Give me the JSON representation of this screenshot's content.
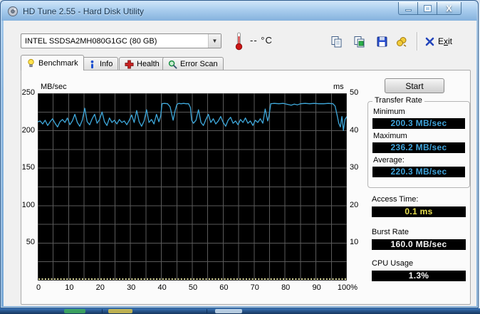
{
  "window": {
    "title": "HD Tune 2.55 - Hard Disk Utility"
  },
  "toolbar": {
    "drive_select": "INTEL SSDSA2MH080G1GC (80 GB)",
    "temperature_value": "--",
    "temperature_unit": "°C",
    "exit_label_parts": {
      "pre": "E",
      "accel": "x",
      "post": "it"
    }
  },
  "tabs": [
    {
      "label": "Benchmark",
      "icon": "lightbulb-icon",
      "active": true
    },
    {
      "label": "Info",
      "icon": "info-icon",
      "active": false
    },
    {
      "label": "Health",
      "icon": "health-cross-icon",
      "active": false
    },
    {
      "label": "Error Scan",
      "icon": "magnifier-icon",
      "active": false
    }
  ],
  "panel": {
    "start_button": "Start",
    "transfer_rate": {
      "legend": "Transfer Rate",
      "minimum_label": "Minimum",
      "minimum_value": "200.3 MB/sec",
      "maximum_label": "Maximum",
      "maximum_value": "236.2 MB/sec",
      "average_label": "Average:",
      "average_value": "220.3 MB/sec"
    },
    "access_time_label": "Access Time:",
    "access_time_value": "0.1 ms",
    "burst_rate_label": "Burst Rate",
    "burst_rate_value": "160.0 MB/sec",
    "cpu_usage_label": "CPU Usage",
    "cpu_usage_value": "1.3%"
  },
  "colors": {
    "accent_line": "#3fa9dc",
    "value_blue": "#3fa3da",
    "value_yellow": "#e8e050",
    "value_white": "#f5f5f5",
    "chart_background": "#000000"
  },
  "chart_data": {
    "type": "line",
    "title": "",
    "y_left_label": "MB/sec",
    "y_right_label": "ms",
    "x_ticks": [
      "0",
      "10",
      "20",
      "30",
      "40",
      "50",
      "60",
      "70",
      "80",
      "90",
      "100%"
    ],
    "y_left_ticks": [
      250,
      200,
      150,
      100,
      50
    ],
    "y_right_ticks": [
      50,
      40,
      30,
      20,
      10
    ],
    "xlim": [
      0,
      100
    ],
    "ylim_left": [
      0,
      250
    ],
    "ylim_right": [
      0,
      50
    ],
    "grid": {
      "x_step": 5,
      "y_step": 25,
      "color": "#5a5a5a",
      "on": true
    },
    "legend_position": "none",
    "line_color": "#3fa9dc",
    "access_dot_color": "#eae8a8",
    "access_time_ms": 0.1,
    "transfer_series": [
      [
        0,
        212
      ],
      [
        0.8,
        213
      ],
      [
        1.6,
        209
      ],
      [
        2.4,
        214
      ],
      [
        3.2,
        207
      ],
      [
        4,
        212
      ],
      [
        4.8,
        216
      ],
      [
        5.6,
        210
      ],
      [
        6.4,
        205
      ],
      [
        7.2,
        212
      ],
      [
        8,
        215
      ],
      [
        8.8,
        211
      ],
      [
        9.6,
        217
      ],
      [
        10.4,
        208
      ],
      [
        11.2,
        213
      ],
      [
        12,
        222
      ],
      [
        12.8,
        211
      ],
      [
        13.6,
        206
      ],
      [
        14.4,
        214
      ],
      [
        15.2,
        230
      ],
      [
        16,
        212
      ],
      [
        16.8,
        208
      ],
      [
        17.6,
        216
      ],
      [
        18.4,
        222
      ],
      [
        19.2,
        210
      ],
      [
        20,
        215
      ],
      [
        20.8,
        225
      ],
      [
        21.6,
        212
      ],
      [
        22.4,
        207
      ],
      [
        23.2,
        217
      ],
      [
        24,
        211
      ],
      [
        24.8,
        214
      ],
      [
        25.6,
        209
      ],
      [
        26.4,
        215
      ],
      [
        27.2,
        211
      ],
      [
        28,
        213
      ],
      [
        28.8,
        208
      ],
      [
        29.6,
        214
      ],
      [
        30.4,
        221
      ],
      [
        31.2,
        211
      ],
      [
        32,
        227
      ],
      [
        32.8,
        212
      ],
      [
        33.6,
        206
      ],
      [
        34.4,
        213
      ],
      [
        35.2,
        228
      ],
      [
        36,
        211
      ],
      [
        36.8,
        215
      ],
      [
        37.6,
        209
      ],
      [
        38.4,
        222
      ],
      [
        39.2,
        212
      ],
      [
        39.8,
        220
      ],
      [
        40.2,
        236
      ],
      [
        41,
        236.5
      ],
      [
        42,
        236
      ],
      [
        42.8,
        232
      ],
      [
        43.4,
        221
      ],
      [
        43.8,
        214
      ],
      [
        44.4,
        226
      ],
      [
        45,
        235
      ],
      [
        45.6,
        236.5
      ],
      [
        46.4,
        236
      ],
      [
        47.2,
        236.5
      ],
      [
        48,
        236
      ],
      [
        48.8,
        236
      ],
      [
        49.4,
        231
      ],
      [
        49.8,
        214
      ],
      [
        50.4,
        210
      ],
      [
        51.2,
        214
      ],
      [
        52,
        228
      ],
      [
        52.8,
        211
      ],
      [
        53.6,
        207
      ],
      [
        54.4,
        215
      ],
      [
        55.2,
        222
      ],
      [
        56,
        211
      ],
      [
        56.8,
        216
      ],
      [
        57.6,
        209
      ],
      [
        58.4,
        213
      ],
      [
        59.2,
        219
      ],
      [
        60,
        211
      ],
      [
        60.8,
        206
      ],
      [
        61.6,
        214
      ],
      [
        62.4,
        218
      ],
      [
        63.2,
        210
      ],
      [
        64,
        213
      ],
      [
        64.8,
        208
      ],
      [
        65.6,
        215
      ],
      [
        66.4,
        211
      ],
      [
        67.2,
        217
      ],
      [
        68,
        210
      ],
      [
        68.8,
        213
      ],
      [
        69.6,
        207
      ],
      [
        70.4,
        214
      ],
      [
        71.2,
        211
      ],
      [
        72,
        216
      ],
      [
        72.8,
        210
      ],
      [
        73.6,
        229
      ],
      [
        74.4,
        213
      ],
      [
        74.8,
        219
      ],
      [
        75.4,
        236
      ],
      [
        76.5,
        236.5
      ],
      [
        78,
        236
      ],
      [
        79.5,
        236.5
      ],
      [
        81,
        235
      ],
      [
        82,
        234
      ],
      [
        83,
        235.5
      ],
      [
        84,
        234.5
      ],
      [
        85,
        236
      ],
      [
        86.5,
        236.5
      ],
      [
        88,
        236
      ],
      [
        89.5,
        236.5
      ],
      [
        91,
        236
      ],
      [
        92.5,
        236
      ],
      [
        94,
        236.5
      ],
      [
        95.5,
        236
      ],
      [
        96.2,
        233
      ],
      [
        96.8,
        222
      ],
      [
        97.4,
        210
      ],
      [
        97.9,
        205
      ],
      [
        98.4,
        219
      ],
      [
        98.9,
        200.3
      ],
      [
        99.4,
        215
      ],
      [
        100,
        219
      ]
    ]
  }
}
